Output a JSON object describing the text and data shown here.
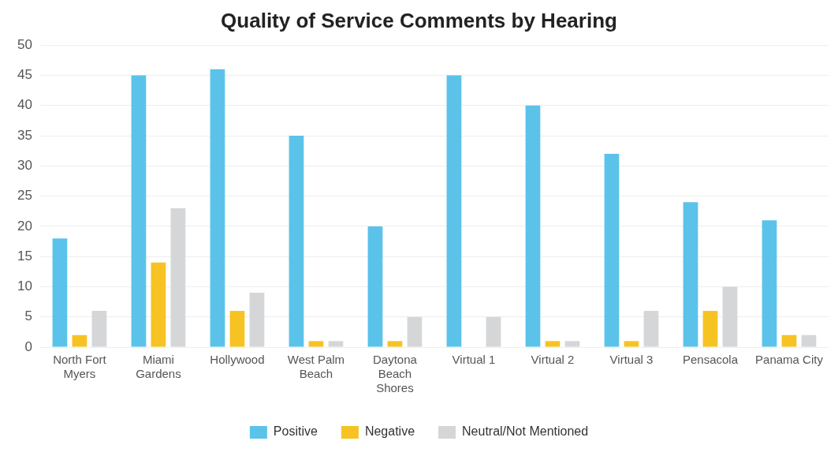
{
  "chart_data": {
    "type": "bar",
    "title": "Quality of Service Comments by Hearing",
    "categories": [
      "North Fort Myers",
      "Miami Gardens",
      "Hollywood",
      "West Palm Beach",
      "Daytona Beach Shores",
      "Virtual 1",
      "Virtual 2",
      "Virtual 3",
      "Pensacola",
      "Panama City"
    ],
    "series": [
      {
        "name": "Positive",
        "color": "#5bc3ea",
        "values": [
          18,
          45,
          46,
          35,
          20,
          45,
          40,
          32,
          24,
          21
        ]
      },
      {
        "name": "Negative",
        "color": "#f6c323",
        "values": [
          2,
          14,
          6,
          1,
          1,
          0,
          1,
          1,
          6,
          2
        ]
      },
      {
        "name": "Neutral/Not Mentioned",
        "color": "#d4d6d8",
        "values": [
          6,
          23,
          9,
          1,
          5,
          5,
          1,
          6,
          10,
          2
        ]
      }
    ],
    "ylim": [
      0,
      50
    ],
    "yticks": [
      0,
      5,
      10,
      15,
      20,
      25,
      30,
      35,
      40,
      45,
      50
    ],
    "grid": "y",
    "legend": "bottom"
  }
}
